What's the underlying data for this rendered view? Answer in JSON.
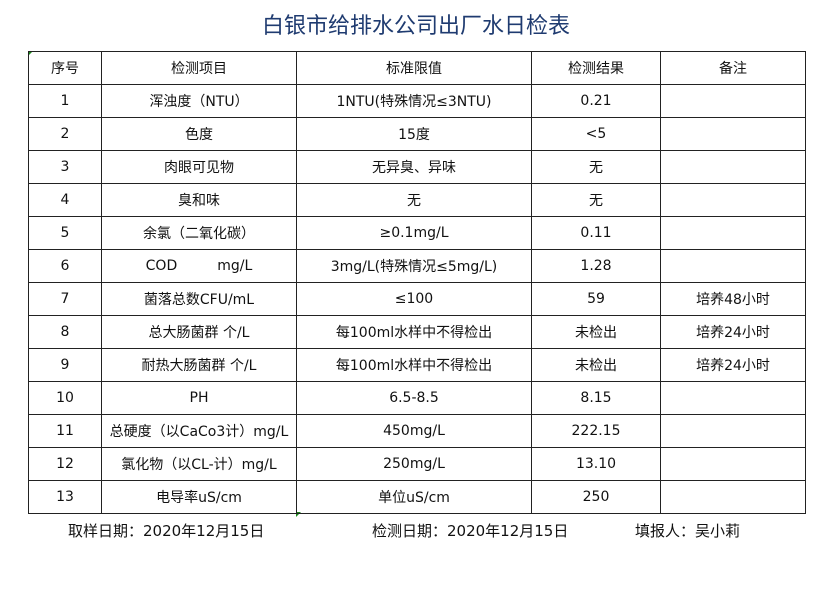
{
  "title": "白银市给排水公司出厂水日检表",
  "headers": [
    "序号",
    "检测项目",
    "标准限值",
    "检测结果",
    "备注"
  ],
  "rows": [
    [
      "1",
      "浑浊度（NTU）",
      "1NTU(特殊情况≤3NTU)",
      "0.21",
      ""
    ],
    [
      "2",
      "色度",
      "15度",
      "<5",
      ""
    ],
    [
      "3",
      "肉眼可见物",
      "无异臭、异味",
      "无",
      ""
    ],
    [
      "4",
      "臭和味",
      "无",
      "无",
      ""
    ],
    [
      "5",
      "余氯（二氧化碳）",
      "≥0.1mg/L",
      "0.11",
      ""
    ],
    [
      "6",
      "COD         mg/L",
      "3mg/L(特殊情况≤5mg/L)",
      "1.28",
      ""
    ],
    [
      "7",
      "菌落总数CFU/mL",
      "≤100",
      "59",
      "培养48小时"
    ],
    [
      "8",
      "总大肠菌群 个/L",
      "每100ml水样中不得检出",
      "未检出",
      "培养24小时"
    ],
    [
      "9",
      "耐热大肠菌群 个/L",
      "每100ml水样中不得检出",
      "未检出",
      "培养24小时"
    ],
    [
      "10",
      "PH",
      "6.5-8.5",
      "8.15",
      ""
    ],
    [
      "11",
      "总硬度（以CaCo3计）mg/L",
      "450mg/L",
      "222.15",
      ""
    ],
    [
      "12",
      "氯化物（以CL-计）mg/L",
      "250mg/L",
      "13.10",
      ""
    ],
    [
      "13",
      "电导率uS/cm",
      "单位uS/cm",
      "250",
      ""
    ]
  ],
  "footer": {
    "sampling_date": "取样日期：2020年12月15日",
    "test_date": "检测日期：2020年12月15日",
    "reporter": "填报人：吴小莉"
  }
}
